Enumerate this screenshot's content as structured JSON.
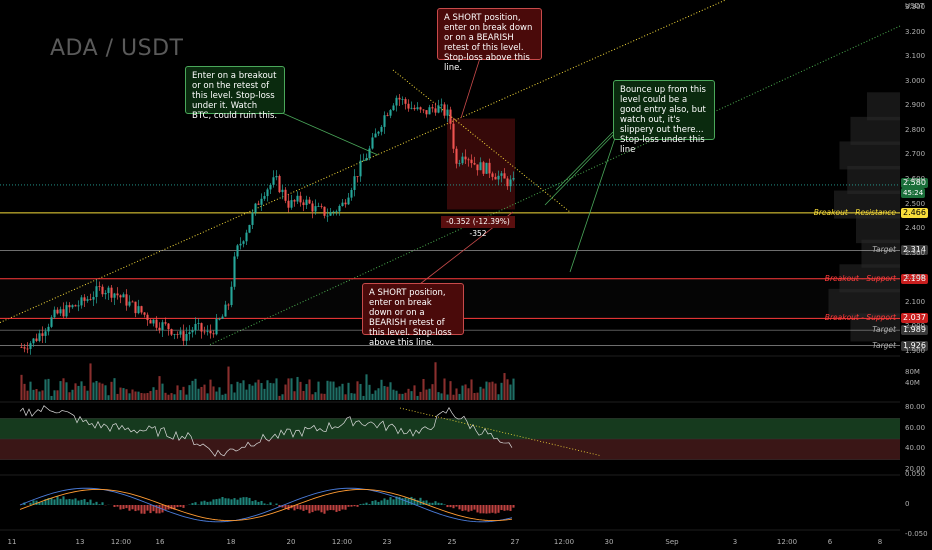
{
  "chart_data": [
    {
      "type": "candlestick",
      "title": "ADA / USDT",
      "currency": "USDT",
      "y_axis_ticks": [
        "3.300",
        "3.200",
        "3.100",
        "3.000",
        "2.900",
        "2.800",
        "2.700",
        "2.600",
        "2.500",
        "2.400",
        "2.300",
        "2.200",
        "2.100",
        "2.000",
        "1.900"
      ],
      "x_axis_ticks": [
        "11",
        "13",
        "12:00",
        "16",
        "18",
        "20",
        "12:00",
        "23",
        "25",
        "27",
        "12:00",
        "30",
        "Sep",
        "3",
        "12:00",
        "6",
        "8"
      ],
      "ylim": [
        1.9,
        3.3
      ],
      "price_path": [
        [
          0,
          1.92
        ],
        [
          2,
          1.95
        ],
        [
          5,
          2.05
        ],
        [
          9,
          2.1
        ],
        [
          12,
          2.16
        ],
        [
          14,
          2.14
        ],
        [
          16,
          2.1
        ],
        [
          18,
          2.06
        ],
        [
          20,
          2.02
        ],
        [
          22,
          2.0
        ],
        [
          24,
          1.96
        ],
        [
          26,
          2.0
        ],
        [
          28,
          1.97
        ],
        [
          30,
          2.04
        ],
        [
          31,
          2.1
        ],
        [
          32,
          2.3
        ],
        [
          34,
          2.42
        ],
        [
          36,
          2.55
        ],
        [
          38,
          2.6
        ],
        [
          40,
          2.5
        ],
        [
          42,
          2.52
        ],
        [
          44,
          2.48
        ],
        [
          46,
          2.46
        ],
        [
          48,
          2.5
        ],
        [
          50,
          2.62
        ],
        [
          52,
          2.72
        ],
        [
          54,
          2.85
        ],
        [
          56,
          2.94
        ],
        [
          58,
          2.9
        ],
        [
          60,
          2.87
        ],
        [
          62,
          2.9
        ],
        [
          64,
          2.86
        ],
        [
          65,
          2.66
        ],
        [
          66,
          2.72
        ],
        [
          68,
          2.66
        ],
        [
          70,
          2.64
        ],
        [
          72,
          2.6
        ],
        [
          74,
          2.58
        ]
      ],
      "last_price": "2.580",
      "countdown": "45:24",
      "levels": [
        {
          "value": "2.466",
          "label": "Breakout - Resistance",
          "color": "#f7dc3a"
        },
        {
          "value": "2.314",
          "label": "Target",
          "color": "#b0b0b0"
        },
        {
          "value": "2.198",
          "label": "Breakout - Support",
          "color": "#ff3b3b"
        },
        {
          "value": "2.037",
          "label": "Breakout - Support",
          "color": "#ff3b3b"
        },
        {
          "value": "1.989",
          "label": "Target",
          "color": "#b0b0b0"
        },
        {
          "value": "1.926",
          "label": "Target",
          "color": "#b0b0b0"
        }
      ],
      "measurement": "-0.352 (-12.39%) -352",
      "annotations": [
        {
          "id": "a1",
          "color": "green",
          "text": "Enter on a breakout or on the retest of this level. Stop-loss under it. Watch BTC, could ruin this."
        },
        {
          "id": "a2",
          "color": "red",
          "text": "A SHORT position, enter on break down or on a BEARISH retest of this level. Stop-loss above this line."
        },
        {
          "id": "a3",
          "color": "green",
          "text": "Bounce up from this level could be a good entry also, but watch out, it's slippery out there... Stop-loss under this line"
        },
        {
          "id": "a4",
          "color": "red",
          "text": "A SHORT position, enter on break down or on a BEARISH retest of this level. Stop-loss above this line."
        }
      ]
    },
    {
      "type": "bar",
      "name": "volume",
      "y_axis_ticks": [
        "80M",
        "40M"
      ]
    },
    {
      "type": "line",
      "name": "rsi",
      "y_axis_ticks": [
        "80.00",
        "60.00",
        "40.00",
        "20.00"
      ],
      "path": [
        [
          0,
          75
        ],
        [
          5,
          80
        ],
        [
          10,
          65
        ],
        [
          15,
          60
        ],
        [
          20,
          58
        ],
        [
          25,
          52
        ],
        [
          30,
          35
        ],
        [
          35,
          48
        ],
        [
          40,
          55
        ],
        [
          45,
          60
        ],
        [
          50,
          68
        ],
        [
          55,
          62
        ],
        [
          60,
          55
        ],
        [
          64,
          78
        ],
        [
          66,
          70
        ],
        [
          68,
          60
        ],
        [
          70,
          55
        ],
        [
          72,
          42
        ],
        [
          74,
          45
        ]
      ]
    },
    {
      "type": "line",
      "name": "macd",
      "y_axis_ticks": [
        "0.050",
        "0",
        "-0.050"
      ]
    }
  ],
  "colors": {
    "up": "#26a69a",
    "down": "#ef5350",
    "yellow": "#f7dc3a",
    "green": "#4caf50",
    "red": "#ff3b3b"
  }
}
